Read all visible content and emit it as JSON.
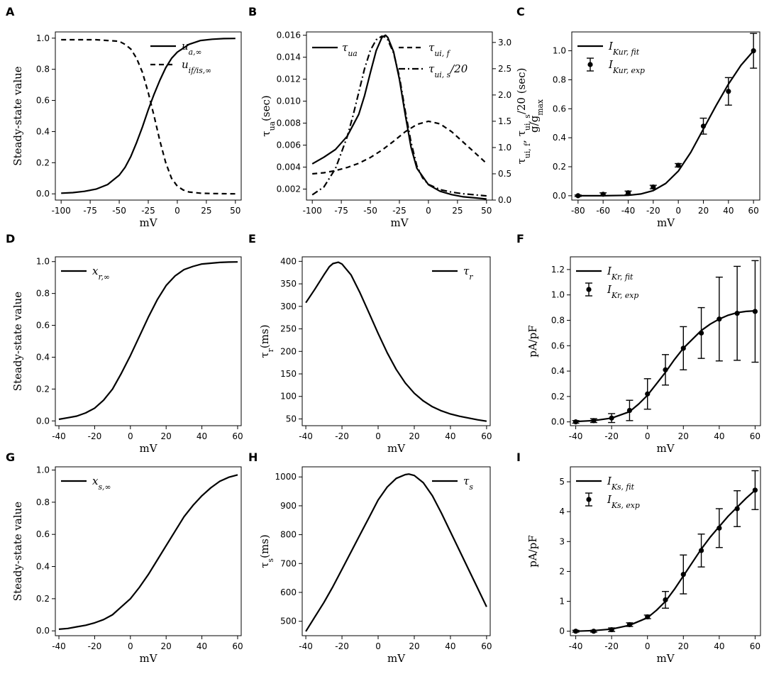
{
  "panels": [
    {
      "letter": "A",
      "type": "line",
      "xlabel": "mV",
      "ylabel": "Steady-state value",
      "xlim": [
        -105,
        55
      ],
      "ylim": [
        -0.04,
        1.04
      ],
      "xticks": [
        -100,
        -75,
        -50,
        -25,
        0,
        25,
        50
      ],
      "xtick_labels": [
        "-100",
        "-75",
        "-50",
        "-25",
        "0",
        "25",
        "50"
      ],
      "yticks": [
        0,
        0.2,
        0.4,
        0.6,
        0.8,
        1.0
      ],
      "ytick_labels": [
        "0.0",
        "0.2",
        "0.4",
        "0.6",
        "0.8",
        "1.0"
      ],
      "legend": {
        "position": "top-right",
        "entries": [
          "u_{a,∞}",
          "u_{if/is,∞}"
        ]
      },
      "series": [
        {
          "name": "u_{a,∞}",
          "style": "solid",
          "x": [
            -100,
            -90,
            -80,
            -70,
            -60,
            -50,
            -45,
            -40,
            -35,
            -30,
            -25,
            -20,
            -15,
            -10,
            -5,
            0,
            10,
            20,
            30,
            40,
            50
          ],
          "y": [
            0.004,
            0.008,
            0.016,
            0.03,
            0.06,
            0.12,
            0.17,
            0.24,
            0.33,
            0.43,
            0.54,
            0.64,
            0.73,
            0.81,
            0.87,
            0.91,
            0.96,
            0.985,
            0.993,
            0.997,
            0.998
          ]
        },
        {
          "name": "u_{if/is,∞}",
          "style": "dashed",
          "x": [
            -100,
            -90,
            -80,
            -70,
            -60,
            -50,
            -45,
            -40,
            -35,
            -30,
            -25,
            -20,
            -15,
            -10,
            -5,
            0,
            5,
            10,
            20,
            30,
            40,
            50
          ],
          "y": [
            0.99,
            0.99,
            0.99,
            0.99,
            0.985,
            0.98,
            0.96,
            0.93,
            0.87,
            0.78,
            0.65,
            0.5,
            0.34,
            0.2,
            0.1,
            0.05,
            0.025,
            0.012,
            0.004,
            0.002,
            0.001,
            0.0
          ]
        }
      ]
    },
    {
      "letter": "B",
      "type": "line",
      "xlabel": "mV",
      "ylabel": "τ_{ua}(sec)",
      "ylabel2": "τ_{ui, f}, τ_{ui, s}/20 (sec)",
      "xlim": [
        -105,
        55
      ],
      "ylim": [
        0.001,
        0.0163
      ],
      "ylim2": [
        0,
        3.2
      ],
      "xticks": [
        -100,
        -75,
        -50,
        -25,
        0,
        25,
        50
      ],
      "xtick_labels": [
        "-100",
        "-75",
        "-50",
        "-25",
        "0",
        "25",
        "50"
      ],
      "yticks": [
        0.002,
        0.004,
        0.006,
        0.008,
        0.01,
        0.012,
        0.014,
        0.016
      ],
      "ytick_labels": [
        "0.002",
        "0.004",
        "0.006",
        "0.008",
        "0.010",
        "0.012",
        "0.014",
        "0.016"
      ],
      "yticks2": [
        0,
        0.5,
        1.0,
        1.5,
        2.0,
        2.5,
        3.0
      ],
      "ytick_labels2": [
        "0.0",
        "0.5",
        "1.0",
        "1.5",
        "2.0",
        "2.5",
        "3.0"
      ],
      "legend": {
        "position": "top",
        "entries": [
          "τ_{ua}",
          "τ_{ui, f}",
          "τ_{ui, s}/20"
        ]
      },
      "series": [
        {
          "name": "τ_{ua}",
          "style": "solid",
          "axis": "left",
          "x": [
            -100,
            -90,
            -80,
            -70,
            -60,
            -55,
            -50,
            -45,
            -40,
            -37,
            -35,
            -30,
            -25,
            -20,
            -15,
            -10,
            0,
            10,
            20,
            30,
            40,
            50
          ],
          "y": [
            0.0043,
            0.0049,
            0.0056,
            0.0068,
            0.0088,
            0.0105,
            0.0126,
            0.0146,
            0.0158,
            0.016,
            0.0158,
            0.0145,
            0.012,
            0.0088,
            0.0058,
            0.0039,
            0.0024,
            0.0018,
            0.0015,
            0.0013,
            0.0012,
            0.0011
          ]
        },
        {
          "name": "τ_{ui, f}",
          "style": "dashed",
          "axis": "right",
          "x": [
            -100,
            -90,
            -80,
            -70,
            -60,
            -50,
            -40,
            -30,
            -20,
            -10,
            0,
            10,
            20,
            30,
            40,
            50
          ],
          "y": [
            0.5,
            0.52,
            0.56,
            0.62,
            0.7,
            0.81,
            0.95,
            1.12,
            1.3,
            1.44,
            1.5,
            1.45,
            1.3,
            1.1,
            0.9,
            0.7
          ]
        },
        {
          "name": "τ_{ui, s}/20",
          "style": "dashdot",
          "axis": "right",
          "x": [
            -100,
            -90,
            -80,
            -70,
            -65,
            -60,
            -55,
            -50,
            -45,
            -40,
            -37,
            -35,
            -30,
            -25,
            -20,
            -15,
            -10,
            -5,
            0,
            10,
            20,
            30,
            40,
            50
          ],
          "y": [
            0.1,
            0.25,
            0.6,
            1.2,
            1.6,
            2.05,
            2.5,
            2.85,
            3.05,
            3.12,
            3.1,
            3.05,
            2.8,
            2.35,
            1.7,
            1.1,
            0.65,
            0.42,
            0.3,
            0.2,
            0.15,
            0.12,
            0.1,
            0.08
          ]
        }
      ]
    },
    {
      "letter": "C",
      "type": "line+errorbar",
      "xlabel": "mV",
      "ylabel": "g/g_max",
      "xlim": [
        -85,
        65
      ],
      "ylim": [
        -0.03,
        1.13
      ],
      "xticks": [
        -80,
        -60,
        -40,
        -20,
        0,
        20,
        40,
        60
      ],
      "xtick_labels": [
        "-80",
        "-60",
        "-40",
        "-20",
        "0",
        "20",
        "40",
        "60"
      ],
      "yticks": [
        0,
        0.2,
        0.4,
        0.6,
        0.8,
        1.0
      ],
      "ytick_labels": [
        "0.0",
        "0.2",
        "0.4",
        "0.6",
        "0.8",
        "1.0"
      ],
      "legend": {
        "position": "top-left",
        "entries": [
          "I_{Kur, fit}",
          "I_{Kur, exp}"
        ]
      },
      "series": [
        {
          "name": "I_{Kur, fit}",
          "style": "solid",
          "x": [
            -80,
            -60,
            -40,
            -30,
            -20,
            -10,
            0,
            10,
            20,
            30,
            40,
            50,
            60
          ],
          "y": [
            0,
            0,
            0.003,
            0.012,
            0.035,
            0.085,
            0.17,
            0.3,
            0.46,
            0.62,
            0.77,
            0.9,
            1.0
          ]
        }
      ],
      "points": {
        "name": "I_{Kur, exp}",
        "x": [
          -80,
          -60,
          -40,
          -20,
          0,
          20,
          40,
          60
        ],
        "y": [
          0.0,
          0.01,
          0.02,
          0.06,
          0.21,
          0.48,
          0.72,
          1.0
        ],
        "err": [
          0.005,
          0.01,
          0.012,
          0.012,
          0.012,
          0.055,
          0.095,
          0.12
        ]
      }
    },
    {
      "letter": "D",
      "type": "line",
      "xlabel": "mV",
      "ylabel": "Steady-state value",
      "xlim": [
        -42,
        62
      ],
      "ylim": [
        -0.03,
        1.03
      ],
      "xticks": [
        -40,
        -20,
        0,
        20,
        40,
        60
      ],
      "xtick_labels": [
        "-40",
        "-20",
        "0",
        "20",
        "40",
        "60"
      ],
      "yticks": [
        0,
        0.2,
        0.4,
        0.6,
        0.8,
        1.0
      ],
      "ytick_labels": [
        "0.0",
        "0.2",
        "0.4",
        "0.6",
        "0.8",
        "1.0"
      ],
      "legend": {
        "position": "top-left",
        "entries": [
          "x_{r,∞}"
        ]
      },
      "series": [
        {
          "name": "x_{r,∞}",
          "style": "solid",
          "x": [
            -40,
            -35,
            -30,
            -25,
            -20,
            -15,
            -10,
            -5,
            0,
            5,
            10,
            15,
            20,
            25,
            30,
            35,
            40,
            45,
            50,
            55,
            60
          ],
          "y": [
            0.01,
            0.02,
            0.03,
            0.05,
            0.08,
            0.13,
            0.2,
            0.3,
            0.41,
            0.53,
            0.65,
            0.76,
            0.85,
            0.91,
            0.95,
            0.97,
            0.985,
            0.99,
            0.995,
            0.997,
            0.998
          ]
        }
      ]
    },
    {
      "letter": "E",
      "type": "line",
      "xlabel": "mV",
      "ylabel": "τ_{r}(ms)",
      "xlim": [
        -42,
        62
      ],
      "ylim": [
        35,
        410
      ],
      "xticks": [
        -40,
        -20,
        0,
        20,
        40,
        60
      ],
      "xtick_labels": [
        "-40",
        "-20",
        "0",
        "20",
        "40",
        "60"
      ],
      "yticks": [
        50,
        100,
        150,
        200,
        250,
        300,
        350,
        400
      ],
      "ytick_labels": [
        "50",
        "100",
        "150",
        "200",
        "250",
        "300",
        "350",
        "400"
      ],
      "legend": {
        "position": "top-right",
        "entries": [
          "τ_{r}"
        ]
      },
      "series": [
        {
          "name": "τ_{r}",
          "style": "solid",
          "x": [
            -40,
            -35,
            -30,
            -27,
            -25,
            -22,
            -20,
            -15,
            -10,
            -5,
            0,
            5,
            10,
            15,
            20,
            25,
            30,
            35,
            40,
            45,
            50,
            55,
            60
          ],
          "y": [
            308,
            338,
            370,
            388,
            395,
            398,
            394,
            370,
            330,
            285,
            240,
            197,
            160,
            130,
            107,
            90,
            77,
            68,
            61,
            56,
            52,
            48,
            45
          ]
        }
      ]
    },
    {
      "letter": "F",
      "type": "line+errorbar",
      "xlabel": "mV",
      "ylabel": "pA/pF",
      "xlim": [
        -43,
        63
      ],
      "ylim": [
        -0.03,
        1.3
      ],
      "xticks": [
        -40,
        -20,
        0,
        20,
        40,
        60
      ],
      "xtick_labels": [
        "-40",
        "-20",
        "0",
        "20",
        "40",
        "60"
      ],
      "yticks": [
        0,
        0.2,
        0.4,
        0.6,
        0.8,
        1.0,
        1.2
      ],
      "ytick_labels": [
        "0.0",
        "0.2",
        "0.4",
        "0.6",
        "0.8",
        "1.0",
        "1.2"
      ],
      "legend": {
        "position": "top-left",
        "entries": [
          "I_{Kr, fit}",
          "I_{Kr, exp}"
        ]
      },
      "series": [
        {
          "name": "I_{Kr, fit}",
          "style": "solid",
          "x": [
            -40,
            -30,
            -20,
            -10,
            -5,
            0,
            5,
            10,
            15,
            20,
            25,
            30,
            35,
            40,
            45,
            50,
            55,
            60
          ],
          "y": [
            0.003,
            0.01,
            0.03,
            0.08,
            0.14,
            0.21,
            0.3,
            0.39,
            0.49,
            0.58,
            0.65,
            0.72,
            0.77,
            0.81,
            0.84,
            0.86,
            0.87,
            0.875
          ]
        }
      ],
      "points": {
        "name": "I_{Kr, exp}",
        "x": [
          -40,
          -30,
          -20,
          -10,
          0,
          10,
          20,
          30,
          40,
          50,
          60
        ],
        "y": [
          0.0,
          0.01,
          0.03,
          0.09,
          0.22,
          0.41,
          0.58,
          0.7,
          0.81,
          0.855,
          0.87
        ],
        "err": [
          0.01,
          0.015,
          0.035,
          0.08,
          0.12,
          0.12,
          0.17,
          0.2,
          0.33,
          0.37,
          0.4
        ]
      }
    },
    {
      "letter": "G",
      "type": "line",
      "xlabel": "mV",
      "ylabel": "Steady-state value",
      "xlim": [
        -42,
        62
      ],
      "ylim": [
        -0.03,
        1.02
      ],
      "xticks": [
        -40,
        -20,
        0,
        20,
        40,
        60
      ],
      "xtick_labels": [
        "-40",
        "-20",
        "0",
        "20",
        "40",
        "60"
      ],
      "yticks": [
        0,
        0.2,
        0.4,
        0.6,
        0.8,
        1.0
      ],
      "ytick_labels": [
        "0.0",
        "0.2",
        "0.4",
        "0.6",
        "0.8",
        "1.0"
      ],
      "legend": {
        "position": "top-left",
        "entries": [
          "x_{s,∞}"
        ]
      },
      "series": [
        {
          "name": "x_{s,∞}",
          "style": "solid",
          "x": [
            -40,
            -35,
            -30,
            -25,
            -20,
            -15,
            -10,
            -5,
            0,
            5,
            10,
            15,
            20,
            25,
            30,
            35,
            40,
            45,
            50,
            55,
            60
          ],
          "y": [
            0.01,
            0.015,
            0.025,
            0.035,
            0.05,
            0.07,
            0.1,
            0.15,
            0.2,
            0.27,
            0.35,
            0.44,
            0.53,
            0.62,
            0.71,
            0.78,
            0.84,
            0.89,
            0.93,
            0.955,
            0.97
          ]
        }
      ]
    },
    {
      "letter": "H",
      "type": "line",
      "xlabel": "mV",
      "ylabel": "τ_{s}(ms)",
      "xlim": [
        -42,
        62
      ],
      "ylim": [
        450,
        1035
      ],
      "xticks": [
        -40,
        -20,
        0,
        20,
        40,
        60
      ],
      "xtick_labels": [
        "-40",
        "-20",
        "0",
        "20",
        "40",
        "60"
      ],
      "yticks": [
        500,
        600,
        700,
        800,
        900,
        1000
      ],
      "ytick_labels": [
        "500",
        "600",
        "700",
        "800",
        "900",
        "1000"
      ],
      "legend": {
        "position": "top-right",
        "entries": [
          "τ_{s}"
        ]
      },
      "series": [
        {
          "name": "τ_{s}",
          "style": "solid",
          "x": [
            -40,
            -35,
            -30,
            -25,
            -20,
            -15,
            -10,
            -5,
            0,
            5,
            10,
            15,
            17,
            20,
            25,
            30,
            35,
            40,
            45,
            50,
            55,
            60
          ],
          "y": [
            465,
            515,
            565,
            620,
            680,
            740,
            800,
            860,
            920,
            965,
            995,
            1008,
            1010,
            1005,
            980,
            935,
            875,
            810,
            745,
            680,
            615,
            550
          ]
        }
      ]
    },
    {
      "letter": "I",
      "type": "line+errorbar",
      "xlabel": "mV",
      "ylabel": "pA/pF",
      "xlim": [
        -43,
        63
      ],
      "ylim": [
        -0.15,
        5.5
      ],
      "xticks": [
        -40,
        -20,
        0,
        20,
        40,
        60
      ],
      "xtick_labels": [
        "-40",
        "-20",
        "0",
        "20",
        "40",
        "60"
      ],
      "yticks": [
        0,
        1,
        2,
        3,
        4,
        5
      ],
      "ytick_labels": [
        "0",
        "1",
        "2",
        "3",
        "4",
        "5"
      ],
      "legend": {
        "position": "top-left",
        "entries": [
          "I_{Ks, fit}",
          "I_{Ks, exp}"
        ]
      },
      "series": [
        {
          "name": "I_{Ks, fit}",
          "style": "solid",
          "x": [
            -40,
            -30,
            -20,
            -10,
            0,
            5,
            10,
            15,
            20,
            25,
            30,
            35,
            40,
            45,
            50,
            55,
            60
          ],
          "y": [
            0,
            0.02,
            0.07,
            0.2,
            0.45,
            0.7,
            1.0,
            1.4,
            1.85,
            2.3,
            2.75,
            3.15,
            3.5,
            3.85,
            4.15,
            4.45,
            4.72
          ]
        }
      ],
      "points": {
        "name": "I_{Ks, exp}",
        "x": [
          -40,
          -30,
          -20,
          -10,
          0,
          10,
          20,
          30,
          40,
          50,
          60
        ],
        "y": [
          0.0,
          0.0,
          0.05,
          0.22,
          0.48,
          1.05,
          1.9,
          2.7,
          3.45,
          4.1,
          4.72
        ],
        "err": [
          0.03,
          0.03,
          0.06,
          0.06,
          0.06,
          0.28,
          0.65,
          0.55,
          0.65,
          0.6,
          0.65
        ]
      }
    }
  ]
}
